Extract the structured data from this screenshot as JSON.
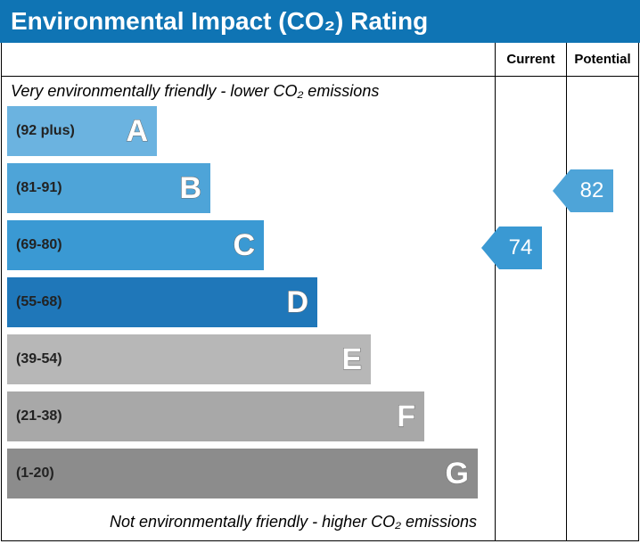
{
  "title": "Environmental Impact (CO₂) Rating",
  "title_bg": "#0f74b4",
  "columns": {
    "current": "Current",
    "potential": "Potential"
  },
  "caption_top": "Very environmentally friendly - lower CO₂ emissions",
  "caption_bottom": "Not environmentally friendly - higher CO₂ emissions",
  "band_height": 56,
  "band_gap": 8,
  "bar_base_width": 168,
  "bar_step_width": 60,
  "letter_outline": "#6a6a6a",
  "bands": [
    {
      "letter": "A",
      "range": "(92 plus)",
      "color": "#6bb3e0"
    },
    {
      "letter": "B",
      "range": "(81-91)",
      "color": "#4ea4d8"
    },
    {
      "letter": "C",
      "range": "(69-80)",
      "color": "#3a99d3"
    },
    {
      "letter": "D",
      "range": "(55-68)",
      "color": "#1f77b9"
    },
    {
      "letter": "E",
      "range": "(39-54)",
      "color": "#b7b7b7"
    },
    {
      "letter": "F",
      "range": "(21-38)",
      "color": "#a8a8a8"
    },
    {
      "letter": "G",
      "range": "(1-20)",
      "color": "#8c8c8c"
    }
  ],
  "current": {
    "value": "74",
    "band_letter": "C",
    "color": "#3a99d3"
  },
  "potential": {
    "value": "82",
    "band_letter": "B",
    "color": "#4ea4d8"
  }
}
